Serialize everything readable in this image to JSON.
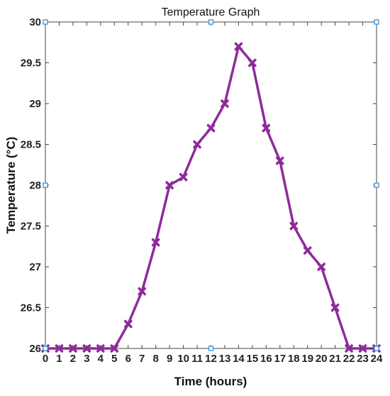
{
  "chart_data": {
    "type": "line",
    "title": "Temperature Graph",
    "xlabel": "Time (hours)",
    "ylabel": "Temperature (°C)",
    "xlim": [
      0,
      24
    ],
    "ylim": [
      26,
      30
    ],
    "xticks": [
      0,
      1,
      2,
      3,
      4,
      5,
      6,
      7,
      8,
      9,
      10,
      11,
      12,
      13,
      14,
      15,
      16,
      17,
      18,
      19,
      20,
      21,
      22,
      23,
      24
    ],
    "yticks": [
      26,
      26.5,
      27,
      27.5,
      28,
      28.5,
      29,
      29.5,
      30
    ],
    "grid": false,
    "series": [
      {
        "color": "#8e2a9a",
        "marker": "x",
        "x": [
          0,
          1,
          2,
          3,
          4,
          5,
          6,
          7,
          8,
          9,
          10,
          11,
          12,
          13,
          14,
          15,
          16,
          17,
          18,
          19,
          20,
          21,
          22,
          23,
          24
        ],
        "y": [
          26,
          26,
          26,
          26,
          26,
          26,
          26.3,
          26.7,
          27.3,
          28,
          28.1,
          28.5,
          28.7,
          29,
          29.7,
          29.5,
          28.7,
          28.3,
          27.5,
          27.2,
          27,
          26.5,
          26,
          26,
          26
        ]
      }
    ],
    "annotation_markers": {
      "color": "#3a8fd6",
      "points": [
        [
          0,
          30
        ],
        [
          12,
          30
        ],
        [
          24,
          30
        ],
        [
          0,
          28
        ],
        [
          24,
          28
        ],
        [
          0,
          26
        ],
        [
          12,
          26
        ],
        [
          24,
          26
        ]
      ]
    }
  }
}
